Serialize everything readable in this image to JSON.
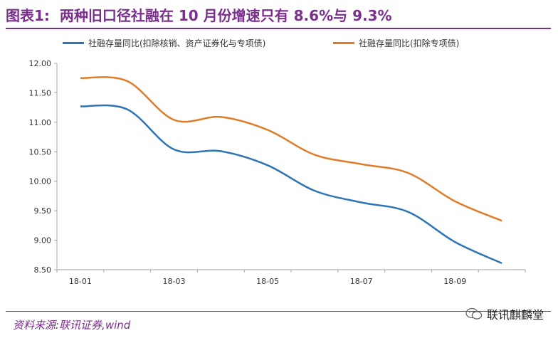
{
  "header": {
    "figure_number": "图表1:",
    "title": "两种旧口径社融在 10 月份增速只有 8.6%与 9.3%"
  },
  "footer": {
    "source": "资料来源:联讯证券,wind",
    "brand": "联讯麒麟堂"
  },
  "colors": {
    "blue": "#2e75b6",
    "orange": "#e07b28",
    "accent": "#7a2f8c",
    "axis": "#a6a6a6"
  },
  "chart_data": {
    "type": "line",
    "x": [
      "18-01",
      "18-02",
      "18-03",
      "18-04",
      "18-05",
      "18-06",
      "18-07",
      "18-08",
      "18-09",
      "18-10"
    ],
    "x_tick_labels": [
      "18-01",
      "18-03",
      "18-05",
      "18-07",
      "18-09"
    ],
    "y_ticks": [
      "12.00",
      "11.50",
      "11.00",
      "10.50",
      "10.00",
      "9.50",
      "9.00",
      "8.50"
    ],
    "ylim": [
      8.5,
      12.0
    ],
    "grid": false,
    "legend_position": "top",
    "series": [
      {
        "name": "社融存量同比(扣除核销、资产证券化与专项债)",
        "color": "#2e75b6",
        "values": [
          11.27,
          11.22,
          10.54,
          10.51,
          10.27,
          9.84,
          9.64,
          9.48,
          8.97,
          8.61
        ]
      },
      {
        "name": "社融存量同比(扣除专项债)",
        "color": "#e07b28",
        "values": [
          11.75,
          11.7,
          11.04,
          11.09,
          10.87,
          10.45,
          10.29,
          10.14,
          9.66,
          9.33
        ]
      }
    ]
  }
}
